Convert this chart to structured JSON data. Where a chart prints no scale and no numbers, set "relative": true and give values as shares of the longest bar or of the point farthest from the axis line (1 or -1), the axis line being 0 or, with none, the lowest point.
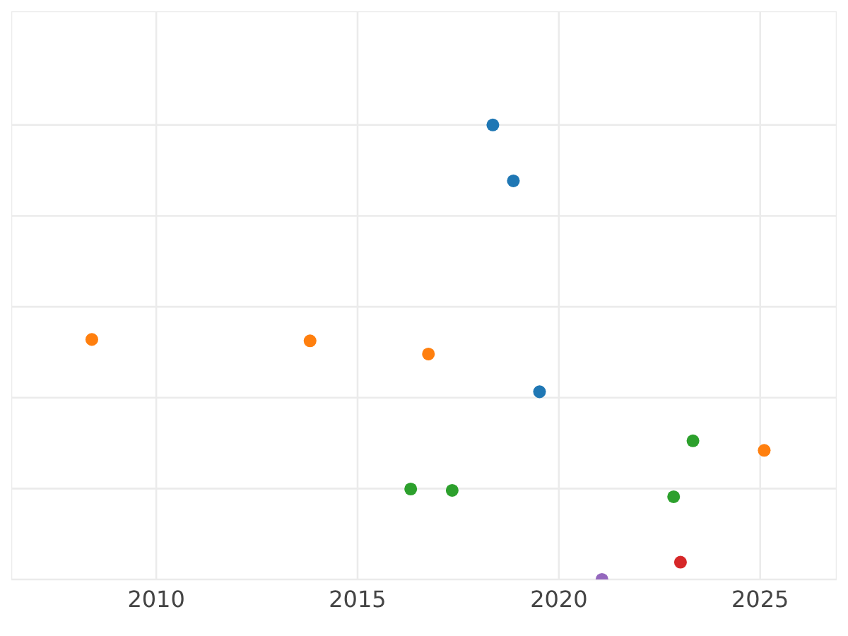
{
  "chart_data": {
    "type": "scatter",
    "relative": true,
    "grid": true,
    "tick_labels": "x",
    "marker": "circle",
    "xlim": [
      2006.4,
      2026.9
    ],
    "xticks": [
      2010,
      2015,
      2020,
      2025
    ],
    "series": [
      {
        "color": "#1f77b4",
        "x": [
          2018.36,
          2018.87,
          2019.52
        ],
        "values": [
          1,
          0.877,
          0.413
        ]
      },
      {
        "color": "#ff7f0e",
        "x": [
          2008.4,
          2013.82,
          2016.76,
          2025.1
        ],
        "values": [
          0.528,
          0.525,
          0.496,
          0.284
        ]
      },
      {
        "color": "#2ca02c",
        "x": [
          2016.32,
          2017.35,
          2022.85,
          2023.33
        ],
        "values": [
          0.199,
          0.196,
          0.182,
          0.305
        ]
      },
      {
        "color": "#d62728",
        "x": [
          2023.02
        ],
        "values": [
          0.038
        ]
      },
      {
        "color": "#9467bd",
        "x": [
          2021.07
        ],
        "values": [
          0
        ]
      }
    ]
  }
}
